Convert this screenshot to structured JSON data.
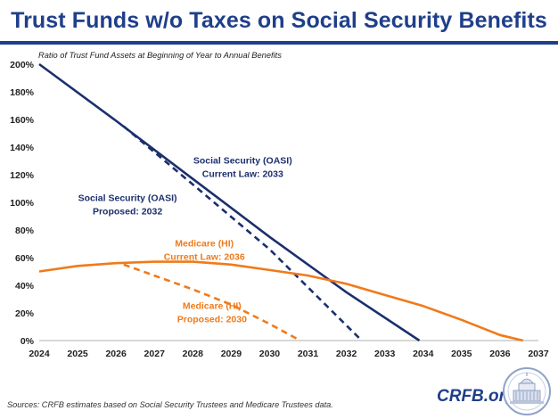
{
  "header": {
    "title": "Trust Funds w/o Taxes on Social Security Benefits",
    "subtitle": "Ratio of Trust Fund Assets at Beginning of Year to Annual Benefits"
  },
  "footer": {
    "source": "Sources: CRFB estimates based on Social Security Trustees and Medicare Trustees data.",
    "brand": "CRFB.org"
  },
  "colors": {
    "title": "#1f3f8a",
    "oasi": "#1b2f6e",
    "hi": "#f07a1a",
    "axis": "#b0b0b0"
  },
  "chart_data": {
    "type": "line",
    "title": "Trust Funds w/o Taxes on Social Security Benefits",
    "subtitle": "Ratio of Trust Fund Assets at Beginning of Year to Annual Benefits",
    "xlabel": "",
    "ylabel": "",
    "xlim": [
      2024,
      2037
    ],
    "ylim": [
      0,
      200
    ],
    "x_ticks": [
      "2024",
      "2025",
      "2026",
      "2027",
      "2028",
      "2029",
      "2030",
      "2031",
      "2032",
      "2033",
      "2034",
      "2035",
      "2036",
      "2037"
    ],
    "y_ticks": [
      "0%",
      "20%",
      "40%",
      "60%",
      "80%",
      "100%",
      "120%",
      "140%",
      "160%",
      "180%",
      "200%"
    ],
    "grid": false,
    "series": [
      {
        "name": "Social Security (OASI) Current Law: 2033",
        "label_lines": [
          "Social Security (OASI)",
          "Current Law: 2033"
        ],
        "style": "solid",
        "color": "#1b2f6e",
        "x": [
          2024,
          2026,
          2028,
          2030,
          2032,
          2033.9
        ],
        "y": [
          200,
          159,
          117,
          75,
          35,
          0
        ],
        "label_pos": [
          2029.3,
          128
        ]
      },
      {
        "name": "Social Security (OASI) Proposed: 2032",
        "label_lines": [
          "Social Security (OASI)",
          "Proposed: 2032"
        ],
        "style": "dashed",
        "color": "#1b2f6e",
        "x": [
          2026.2,
          2028,
          2030,
          2032.4
        ],
        "y": [
          155,
          113,
          66,
          0
        ],
        "label_pos": [
          2026.3,
          101
        ]
      },
      {
        "name": "Medicare (HI) Current Law: 2036",
        "label_lines": [
          "Medicare (HI)",
          "Current Law: 2036"
        ],
        "style": "solid",
        "color": "#f07a1a",
        "x": [
          2024,
          2025,
          2026,
          2027,
          2028,
          2029,
          2030,
          2031,
          2032,
          2033,
          2034,
          2035,
          2036,
          2036.6
        ],
        "y": [
          50,
          54,
          56,
          57,
          57,
          55,
          51,
          47,
          41,
          33,
          25,
          15,
          4,
          0
        ],
        "label_pos": [
          2028.3,
          68
        ]
      },
      {
        "name": "Medicare (HI) Proposed: 2030",
        "label_lines": [
          "Medicare (HI)",
          "Proposed: 2030"
        ],
        "style": "dashed",
        "color": "#f07a1a",
        "x": [
          2026.2,
          2027,
          2028,
          2029,
          2030,
          2030.8
        ],
        "y": [
          55,
          47,
          37,
          26,
          12,
          0
        ],
        "label_pos": [
          2028.5,
          23
        ]
      }
    ]
  }
}
